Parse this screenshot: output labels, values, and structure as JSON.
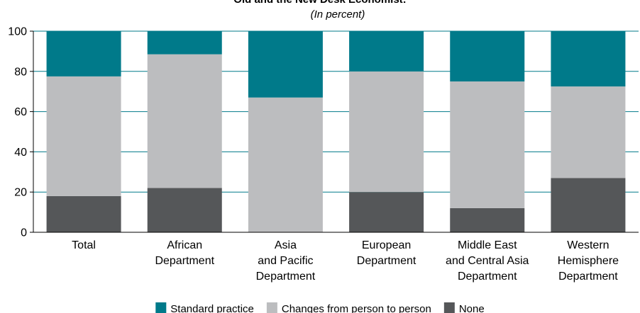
{
  "chart_data": {
    "type": "bar",
    "stacked": true,
    "title": "Old and the New Desk Economist:",
    "subtitle": "(In percent)",
    "ylim": [
      0,
      100
    ],
    "yticks": [
      0,
      20,
      40,
      60,
      80,
      100
    ],
    "grid": true,
    "legend_position": "bottom",
    "categories": [
      "Total",
      "African\nDepartment",
      "Asia\nand Pacific\nDepartment",
      "European\nDepartment",
      "Middle East\nand Central Asia\nDepartment",
      "Western\nHemisphere\nDepartment"
    ],
    "series": [
      {
        "name": "None",
        "color": "#555759",
        "values": [
          18,
          22,
          0,
          20,
          12,
          27
        ]
      },
      {
        "name": "Changes from person to person",
        "color": "#bcbdbf",
        "values": [
          59.5,
          66.5,
          67,
          60,
          63,
          45.5
        ]
      },
      {
        "name": "Standard practice",
        "color": "#007a8a",
        "values": [
          22.5,
          11.5,
          33,
          20,
          25,
          27.5
        ]
      }
    ],
    "legend_order": [
      "Standard practice",
      "Changes from person to person",
      "None"
    ]
  }
}
